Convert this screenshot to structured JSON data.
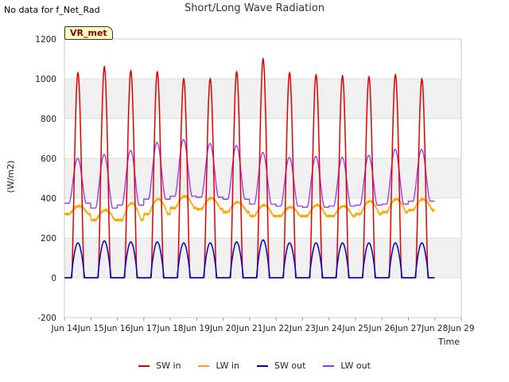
{
  "header": {
    "no_data_text": "No data for f_Net_Rad"
  },
  "chart_data": {
    "type": "line",
    "title": "Short/Long Wave Radiation",
    "xlabel": "Time",
    "ylabel": "(W/m2)",
    "badge": "VR_met",
    "ylim": [
      -200,
      1200
    ],
    "yticks": [
      -200,
      0,
      200,
      400,
      600,
      800,
      1000,
      1200
    ],
    "xlim": [
      14,
      29
    ],
    "xticks": [
      14,
      15,
      16,
      17,
      18,
      19,
      20,
      21,
      22,
      23,
      24,
      25,
      26,
      27,
      28,
      29
    ],
    "xtick_labels": [
      "Jun 14",
      "Jun 15",
      "Jun 16",
      "Jun 17",
      "Jun 18",
      "Jun 19",
      "Jun 20",
      "Jun 21",
      "Jun 22",
      "Jun 23",
      "Jun 24",
      "Jun 25",
      "Jun 26",
      "Jun 27",
      "Jun 28",
      "Jun 29"
    ],
    "grid": true,
    "legend_position": "bottom",
    "days": [
      14,
      15,
      16,
      17,
      18,
      19,
      20,
      21,
      22,
      23,
      24,
      25,
      26,
      27
    ],
    "series": [
      {
        "name": "SW in",
        "color": "#e00000",
        "daily_peak": [
          1030,
          1060,
          1040,
          1035,
          1000,
          1000,
          1035,
          1100,
          1030,
          1020,
          1015,
          1010,
          1020,
          1000
        ],
        "night": 0
      },
      {
        "name": "LW in",
        "color": "#ffa500",
        "daily_min": [
          320,
          290,
          290,
          320,
          350,
          345,
          330,
          310,
          310,
          310,
          310,
          320,
          330,
          340
        ],
        "daily_max": [
          360,
          340,
          375,
          395,
          410,
          400,
          380,
          365,
          355,
          365,
          360,
          385,
          395,
          395
        ]
      },
      {
        "name": "SW out",
        "color": "#0000cc",
        "daily_peak": [
          175,
          185,
          180,
          180,
          175,
          175,
          180,
          190,
          175,
          175,
          175,
          175,
          175,
          175
        ],
        "night": 0
      },
      {
        "name": "LW out",
        "color": "#9b30ff",
        "daily_min": [
          375,
          350,
          365,
          395,
          410,
          405,
          395,
          370,
          360,
          355,
          360,
          365,
          370,
          385
        ],
        "daily_peak": [
          600,
          620,
          640,
          680,
          695,
          675,
          665,
          630,
          605,
          610,
          605,
          615,
          645,
          645
        ]
      }
    ]
  }
}
